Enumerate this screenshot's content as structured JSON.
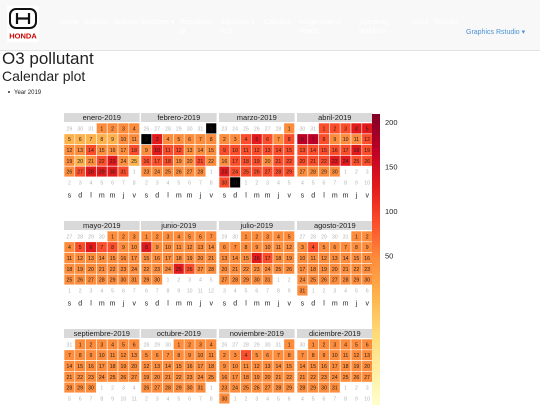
{
  "navbar": {
    "logo_text": "HONDA",
    "items": [
      {
        "label": "Home"
      },
      {
        "label": "Arduino"
      },
      {
        "label": "Arduino Sketches ▾"
      },
      {
        "label": "Raspberry pi"
      },
      {
        "label": "Equation 3 to 8"
      },
      {
        "label": "Calculus"
      },
      {
        "label": "Image map of Honda"
      },
      {
        "label": "Speaking pollution"
      },
      {
        "label": "clock"
      },
      {
        "label": "Rstudio"
      },
      {
        "label": "Graphics Rstudio ▾"
      }
    ]
  },
  "page": {
    "title": "O3 pollutant",
    "subtitle": "Calendar plot",
    "bullet": "Year 2019"
  },
  "chart_data": {
    "type": "heatmap",
    "year": 2019,
    "months": [
      "enero-2019",
      "febrero-2019",
      "marzo-2019",
      "abril-2019",
      "mayo-2019",
      "junio-2019",
      "julio-2019",
      "agosto-2019",
      "septiembre-2019",
      "octubre-2019",
      "noviembre-2019",
      "diciembre-2019"
    ],
    "weekday_labels": [
      "s",
      "d",
      "l",
      "m",
      "m",
      "j",
      "v"
    ],
    "colorbar_ticks": [
      200,
      150,
      100,
      50
    ],
    "colorbar_range": [
      0,
      215
    ],
    "palette": [
      "#ffffcc",
      "#ffeda0",
      "#fed976",
      "#feb24c",
      "#fd8d3c",
      "#fc4e2a",
      "#e31a1c",
      "#bd0026",
      "#800026"
    ],
    "month_levels": [
      [
        4,
        4,
        4,
        4,
        3,
        3,
        3,
        3,
        3,
        4,
        4,
        4,
        4,
        5,
        4,
        4,
        4,
        5,
        4,
        3,
        4,
        5,
        6,
        4,
        3,
        4,
        5,
        6,
        6,
        6,
        5
      ],
      [
        9,
        9,
        6,
        4,
        4,
        4,
        4,
        4,
        4,
        6,
        5,
        5,
        4,
        4,
        4,
        5,
        5,
        5,
        4,
        4,
        5,
        4,
        4,
        4,
        4,
        4,
        4,
        4
      ],
      [
        4,
        4,
        4,
        5,
        6,
        5,
        4,
        5,
        5,
        5,
        5,
        5,
        5,
        5,
        5,
        4,
        5,
        5,
        5,
        4,
        5,
        5,
        6,
        5,
        5,
        5,
        5,
        5,
        5,
        5,
        9
      ],
      [
        5,
        5,
        5,
        6,
        6,
        7,
        7,
        5,
        4,
        4,
        4,
        5,
        5,
        5,
        5,
        5,
        5,
        6,
        5,
        5,
        5,
        5,
        6,
        6,
        5,
        5,
        4,
        4,
        4,
        4
      ],
      [
        4,
        4,
        4,
        4,
        5,
        6,
        5,
        5,
        4,
        4,
        4,
        4,
        4,
        4,
        4,
        4,
        4,
        4,
        4,
        4,
        4,
        4,
        4,
        4,
        4,
        4,
        4,
        4,
        4,
        4,
        4
      ],
      [
        4,
        4,
        4,
        4,
        4,
        4,
        4,
        6,
        4,
        4,
        4,
        4,
        4,
        4,
        4,
        4,
        4,
        4,
        4,
        4,
        4,
        4,
        4,
        4,
        6,
        5,
        4,
        4,
        4,
        4
      ],
      [
        4,
        4,
        4,
        4,
        4,
        4,
        4,
        4,
        4,
        4,
        4,
        4,
        4,
        4,
        4,
        6,
        5,
        4,
        4,
        4,
        4,
        4,
        4,
        4,
        4,
        4,
        4,
        4,
        4,
        4,
        4
      ],
      [
        4,
        4,
        4,
        5,
        4,
        4,
        4,
        4,
        4,
        4,
        4,
        4,
        4,
        4,
        4,
        4,
        4,
        4,
        4,
        4,
        4,
        4,
        4,
        4,
        4,
        4,
        4,
        4,
        4,
        4,
        4
      ],
      [
        4,
        4,
        4,
        4,
        4,
        4,
        4,
        4,
        4,
        4,
        4,
        4,
        4,
        4,
        4,
        4,
        4,
        4,
        4,
        4,
        4,
        4,
        4,
        4,
        4,
        4,
        4,
        4,
        4,
        4
      ],
      [
        4,
        4,
        4,
        4,
        4,
        4,
        4,
        4,
        4,
        4,
        4,
        4,
        4,
        4,
        4,
        4,
        4,
        4,
        4,
        4,
        4,
        4,
        4,
        4,
        4,
        4,
        4,
        4,
        4,
        4,
        4
      ],
      [
        4,
        4,
        4,
        5,
        4,
        4,
        4,
        4,
        4,
        4,
        4,
        4,
        4,
        4,
        4,
        4,
        4,
        4,
        4,
        4,
        4,
        4,
        4,
        4,
        4,
        4,
        4,
        4,
        4,
        4
      ],
      [
        4,
        4,
        4,
        4,
        4,
        4,
        4,
        4,
        4,
        4,
        4,
        4,
        4,
        4,
        4,
        4,
        4,
        4,
        4,
        4,
        4,
        4,
        4,
        4,
        4,
        4,
        4,
        4,
        4,
        4,
        4
      ]
    ]
  }
}
